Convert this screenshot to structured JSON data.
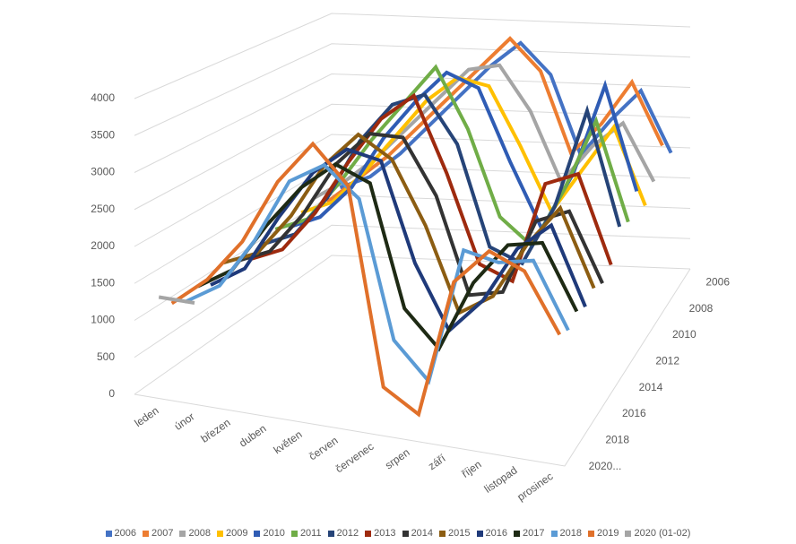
{
  "chart_data": {
    "type": "line",
    "categories": [
      "leden",
      "únor",
      "březen",
      "duben",
      "květen",
      "červen",
      "červenec",
      "srpen",
      "září",
      "říjen",
      "listopad",
      "prosinec"
    ],
    "ylim": [
      0,
      4000
    ],
    "yticks": [
      0,
      500,
      1000,
      1500,
      2000,
      2500,
      3000,
      3500,
      4000
    ],
    "zticks": [
      "2006",
      "2008",
      "2010",
      "2012",
      "2014",
      "2016",
      "2018",
      "2020..."
    ],
    "grid": true,
    "legend": "bottom",
    "series": [
      {
        "name": "2006",
        "color": "#4472c4",
        "values": [
          1200,
          1400,
          1800,
          2300,
          2800,
          3300,
          3700,
          3200,
          1900,
          2500,
          3000,
          2000
        ]
      },
      {
        "name": "2007",
        "color": "#ed7d31",
        "values": [
          1100,
          1500,
          1900,
          2400,
          2900,
          3400,
          3900,
          3400,
          2100,
          2600,
          3300,
          2300
        ]
      },
      {
        "name": "2008",
        "color": "#a5a5a5",
        "values": [
          1300,
          1600,
          2000,
          2500,
          3000,
          3500,
          3600,
          2900,
          1800,
          2400,
          2800,
          1900
        ]
      },
      {
        "name": "2009",
        "color": "#ffc000",
        "values": [
          1200,
          1400,
          1900,
          2500,
          3100,
          3500,
          3400,
          2500,
          1500,
          2200,
          2900,
          1700
        ]
      },
      {
        "name": "2010",
        "color": "#2f5cb4",
        "values": [
          1100,
          1300,
          1800,
          2600,
          3200,
          3700,
          3500,
          2400,
          1400,
          2300,
          3700,
          2100
        ]
      },
      {
        "name": "2011",
        "color": "#70ad47",
        "values": [
          1200,
          1400,
          2000,
          2700,
          3300,
          3900,
          3000,
          1700,
          1300,
          2200,
          3300,
          1800
        ]
      },
      {
        "name": "2012",
        "color": "#264478",
        "values": [
          1100,
          1300,
          1900,
          2800,
          3400,
          3600,
          2900,
          1400,
          1200,
          2100,
          3600,
          1900
        ]
      },
      {
        "name": "2013",
        "color": "#9e2a0e",
        "values": [
          1000,
          1200,
          1800,
          2600,
          3300,
          3700,
          2600,
          1300,
          1100,
          2600,
          2800,
          1500
        ]
      },
      {
        "name": "2014",
        "color": "#333333",
        "values": [
          1100,
          1300,
          1900,
          2700,
          3200,
          3200,
          2400,
          1000,
          1100,
          2200,
          2400,
          1400
        ]
      },
      {
        "name": "2015",
        "color": "#8c5d12",
        "values": [
          1200,
          1400,
          2000,
          2800,
          3300,
          3000,
          2100,
          900,
          1200,
          2000,
          2600,
          1500
        ]
      },
      {
        "name": "2016",
        "color": "#1f3a7a",
        "values": [
          1000,
          1300,
          2100,
          2800,
          3200,
          3100,
          1700,
          800,
          1300,
          2100,
          2500,
          1400
        ]
      },
      {
        "name": "2017",
        "color": "#1e2a14",
        "values": [
          1100,
          1400,
          2100,
          2700,
          3100,
          2900,
          1200,
          700,
          1700,
          2300,
          2400,
          1500
        ]
      },
      {
        "name": "2018",
        "color": "#5b9bd5",
        "values": [
          1000,
          1300,
          2000,
          2900,
          3200,
          2800,
          900,
          400,
          2300,
          2200,
          2300,
          1400
        ]
      },
      {
        "name": "2019",
        "color": "#e0702a",
        "values": [
          1100,
          1500,
          2100,
          3000,
          3600,
          3100,
          400,
          100,
          2000,
          2500,
          2300,
          1500
        ]
      },
      {
        "name": "2020 (01-02)",
        "color": "#a5a5a5",
        "values": [
          1300,
          1300,
          null,
          null,
          null,
          null,
          null,
          null,
          null,
          null,
          null,
          null
        ]
      }
    ]
  }
}
